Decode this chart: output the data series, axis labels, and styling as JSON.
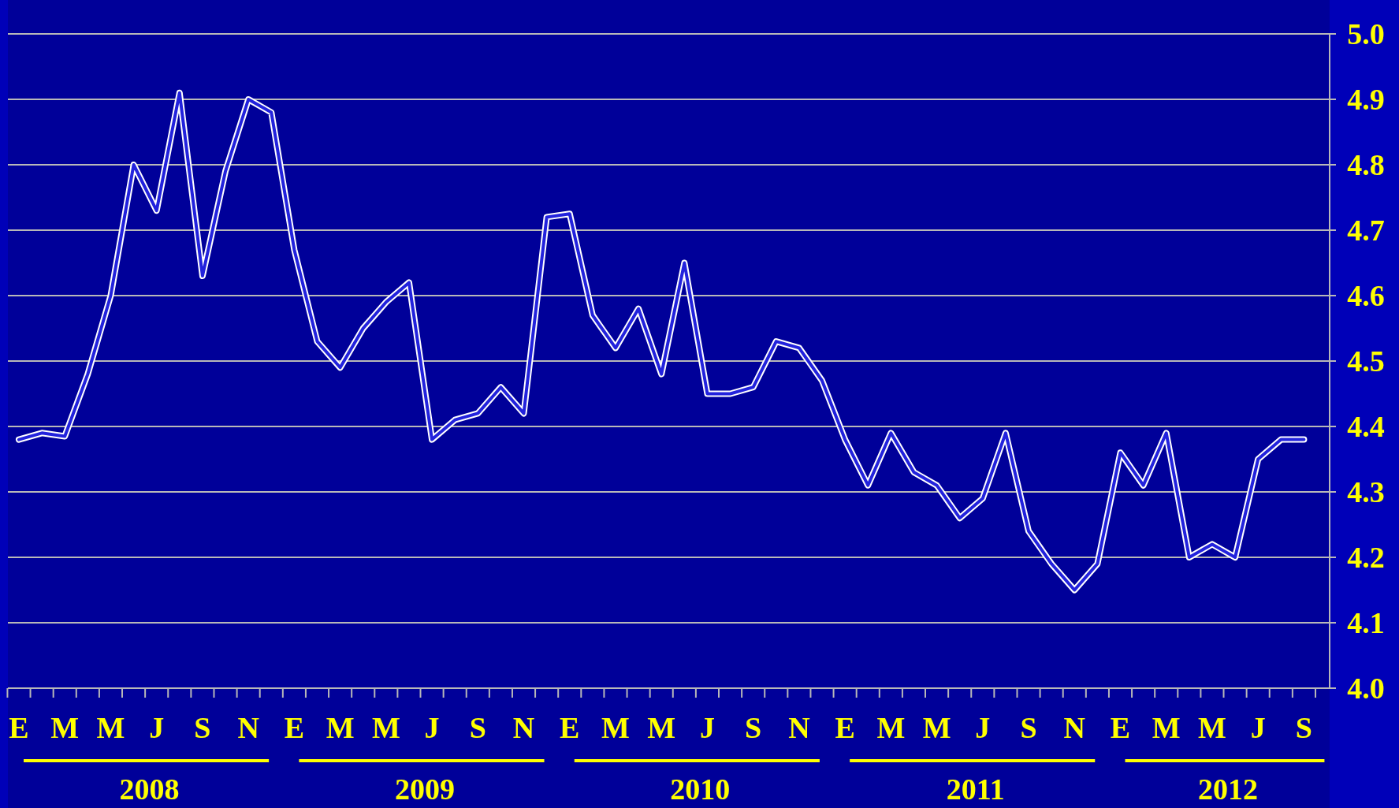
{
  "chart_data": {
    "type": "line",
    "categories": [
      "E",
      null,
      "M",
      null,
      "M",
      null,
      "J",
      null,
      "S",
      null,
      "N",
      null,
      "E",
      null,
      "M",
      null,
      "M",
      null,
      "J",
      null,
      "S",
      null,
      "N",
      null,
      "E",
      null,
      "M",
      null,
      "M",
      null,
      "J",
      null,
      "S",
      null,
      "N",
      null,
      "E",
      null,
      "M",
      null,
      "M",
      null,
      "J",
      null,
      "S",
      null,
      "N",
      null,
      "E",
      null,
      "M",
      null,
      "M",
      null,
      "J",
      null,
      "S"
    ],
    "series": [
      {
        "color": "#2222dd",
        "values": [
          4.38,
          4.39,
          4.385,
          4.48,
          4.6,
          4.8,
          4.73,
          4.91,
          4.63,
          4.79,
          4.9,
          4.88,
          4.67,
          4.53,
          4.49,
          4.55,
          4.59,
          4.62,
          4.38,
          4.41,
          4.42,
          4.46,
          4.42,
          4.72,
          4.725,
          4.57,
          4.52,
          4.58,
          4.48,
          4.65,
          4.45,
          4.45,
          4.46,
          4.53,
          4.52,
          4.47,
          4.38,
          4.31,
          4.39,
          4.33,
          4.31,
          4.26,
          4.29,
          4.39,
          4.24,
          4.19,
          4.15,
          4.19,
          4.36,
          4.31,
          4.39,
          4.2,
          4.22,
          4.2,
          4.35,
          4.38,
          4.38
        ]
      }
    ],
    "ylim": [
      4.0,
      5.0
    ],
    "yticks": [
      {
        "value": 4.0,
        "label": "4.0"
      },
      4.1,
      4.2,
      4.3,
      4.4,
      4.5,
      4.6,
      4.7,
      4.8,
      4.9,
      {
        "value": 5.0,
        "label": "5.0"
      }
    ],
    "grid": "y",
    "annotations": [
      "2008",
      "2009",
      "2010",
      "2011",
      "2012"
    ]
  }
}
